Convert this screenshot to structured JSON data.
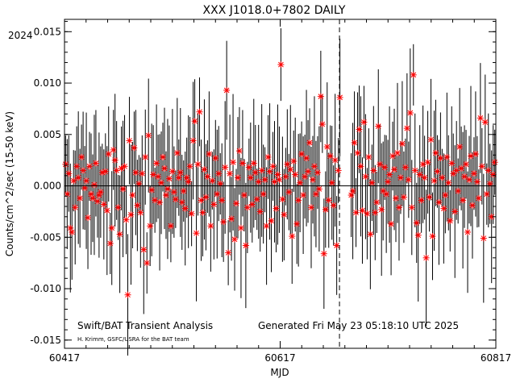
{
  "chart_data": {
    "type": "scatter",
    "title": "XXX J1018.0+7802 DAILY",
    "year_label": "2024",
    "xlabel": "MJD",
    "ylabel": "Counts/cm^2/sec (15-50 keV)",
    "xlim": [
      60417,
      60817
    ],
    "ylim": [
      -0.0158,
      0.0162
    ],
    "x_ticks": [
      60417,
      60617,
      60817
    ],
    "x_tick_labels": [
      "60417",
      "60617",
      "60817"
    ],
    "y_ticks": [
      -0.015,
      -0.01,
      -0.005,
      0.0,
      0.005,
      0.01,
      0.015
    ],
    "y_tick_labels": [
      "-0.015",
      "-0.010",
      "-0.005",
      "0.000",
      "0.005",
      "0.010",
      "0.015"
    ],
    "marker": "red-asterisk",
    "marker_color": "#ff0000",
    "errorbar_color": "#000000",
    "zero_line": 0.0,
    "vertical_dashed_line_x": 60672,
    "footer_left": "Swift/BAT Transient Analysis",
    "footer_credit": "H. Krimm, GSFC/USRA for the BAT team",
    "footer_right": "Generated Fri May 23 05:18:10 UTC 2025",
    "series": [
      {
        "x_start": 60418,
        "x_end": 60816,
        "gap": [
          60673,
          60682
        ],
        "values": [
          0.0021,
          -0.0008,
          0.0012,
          -0.0041,
          -0.0045,
          0.0005,
          -0.0021,
          0.0019,
          0.0008,
          -0.0012,
          0.0028,
          0.0015,
          -0.0002,
          0.0005,
          -0.0031,
          0.0019,
          -0.0008,
          -0.0012,
          0.0001,
          0.0022,
          -0.0015,
          -0.0009,
          -0.0006,
          0.0013,
          -0.0018,
          0.0014,
          -0.0024,
          0.0031,
          -0.0056,
          -0.0041,
          0.0035,
          0.0025,
          0.0015,
          -0.0021,
          -0.0047,
          0.0017,
          -0.0003,
          0.0019,
          -0.0033,
          -0.0106,
          0.0044,
          -0.0028,
          -0.0009,
          0.0037,
          0.0013,
          -0.0019,
          0.0002,
          -0.0026,
          0.0012,
          -0.0062,
          0.0028,
          -0.0075,
          0.0049,
          -0.0039,
          -0.0004,
          0.0011,
          -0.0014,
          0.0022,
          0.0009,
          -0.0016,
          0.0003,
          0.0028,
          0.0017,
          -0.0009,
          -0.0003,
          0.0007,
          -0.0039,
          0.0014,
          -0.0006,
          -0.0013,
          0.0032,
          0.0008,
          0.0013,
          -0.0016,
          -0.0005,
          -0.0022,
          0.0008,
          0.0004,
          0.0019,
          -0.0027,
          0.0044,
          0.0063,
          -0.0046,
          0.0021,
          0.0072,
          -0.0014,
          -0.0026,
          0.0016,
          -0.0011,
          0.0009,
          0.0031,
          -0.0039,
          0.0005,
          -0.0018,
          0.0027,
          -0.0008,
          0.0012,
          0.0002,
          -0.0014,
          -0.0035,
          0.0018,
          0.0093,
          -0.0065,
          0.0012,
          -0.0032,
          0.0023,
          -0.0052,
          -0.0017,
          0.0008,
          0.0034,
          -0.0041,
          0.0022,
          -0.0009,
          -0.0058,
          -0.0021,
          0.0018,
          0.0008,
          -0.0018,
          0.0022,
          0.0013,
          -0.0013,
          0.0004,
          -0.0025,
          0.0015,
          -0.0008,
          0.0006,
          -0.0039,
          0.0028,
          0.0014,
          -0.0034,
          0.0019,
          0.0004,
          -0.0022,
          0.0011,
          0.0006,
          0.0118,
          -0.0013,
          -0.0028,
          0.0009,
          0.0021,
          -0.0006,
          0.0016,
          -0.0049,
          0.0024,
          0.0011,
          -0.0037,
          -0.0014,
          0.0003,
          0.0031,
          -0.0009,
          0.0009,
          0.0027,
          0.0014,
          0.0042,
          -0.0021,
          0.0006,
          0.0019,
          -0.0008,
          0.0013,
          -0.0003,
          0.0087,
          0.006,
          -0.0066,
          -0.0023,
          0.0038,
          -0.0014,
          0.0029,
          0.0003,
          -0.0019,
          0.0025,
          -0.0058,
          0.0015,
          0.0086,
          -0.0009,
          -0.0005,
          0.0042,
          -0.0026,
          0.0032,
          0.0055,
          0.0019,
          -0.0024,
          0.0062,
          0.0009,
          -0.0027,
          0.0028,
          -0.0047,
          0.0003,
          0.0015,
          -0.0026,
          -0.0016,
          0.0058,
          0.0021,
          -0.0023,
          -0.0005,
          0.0018,
          -0.0008,
          0.0004,
          0.0011,
          -0.0037,
          0.0029,
          0.0016,
          -0.0012,
          0.0032,
          -0.0021,
          0.0008,
          0.0041,
          -0.0011,
          0.0018,
          0.0056,
          0.0006,
          0.0071,
          -0.0021,
          0.0108,
          0.0015,
          -0.0036,
          -0.0048,
          0.0011,
          -0.0014,
          0.0021,
          0.0008,
          -0.007,
          0.0023,
          -0.0011,
          0.0045,
          -0.0049,
          0.0005,
          0.0032,
          0.0014,
          -0.0016,
          0.0027,
          0.0008,
          -0.0022,
          -0.0009,
          0.0028,
          0.0003,
          -0.0034,
          0.0022,
          0.0012,
          -0.0025,
          0.0015,
          -0.0005,
          0.0038,
          0.0017,
          -0.0014,
          0.0009,
          0.0021,
          -0.0045,
          0.0006,
          0.0029,
          -0.0019,
          0.0012,
          0.0031,
          0.0004,
          -0.0012,
          0.0066,
          0.0019,
          -0.0051,
          0.0062,
          -0.0008,
          0.0015,
          0.0002,
          -0.003,
          0.0011,
          0.0023
        ]
      }
    ]
  }
}
